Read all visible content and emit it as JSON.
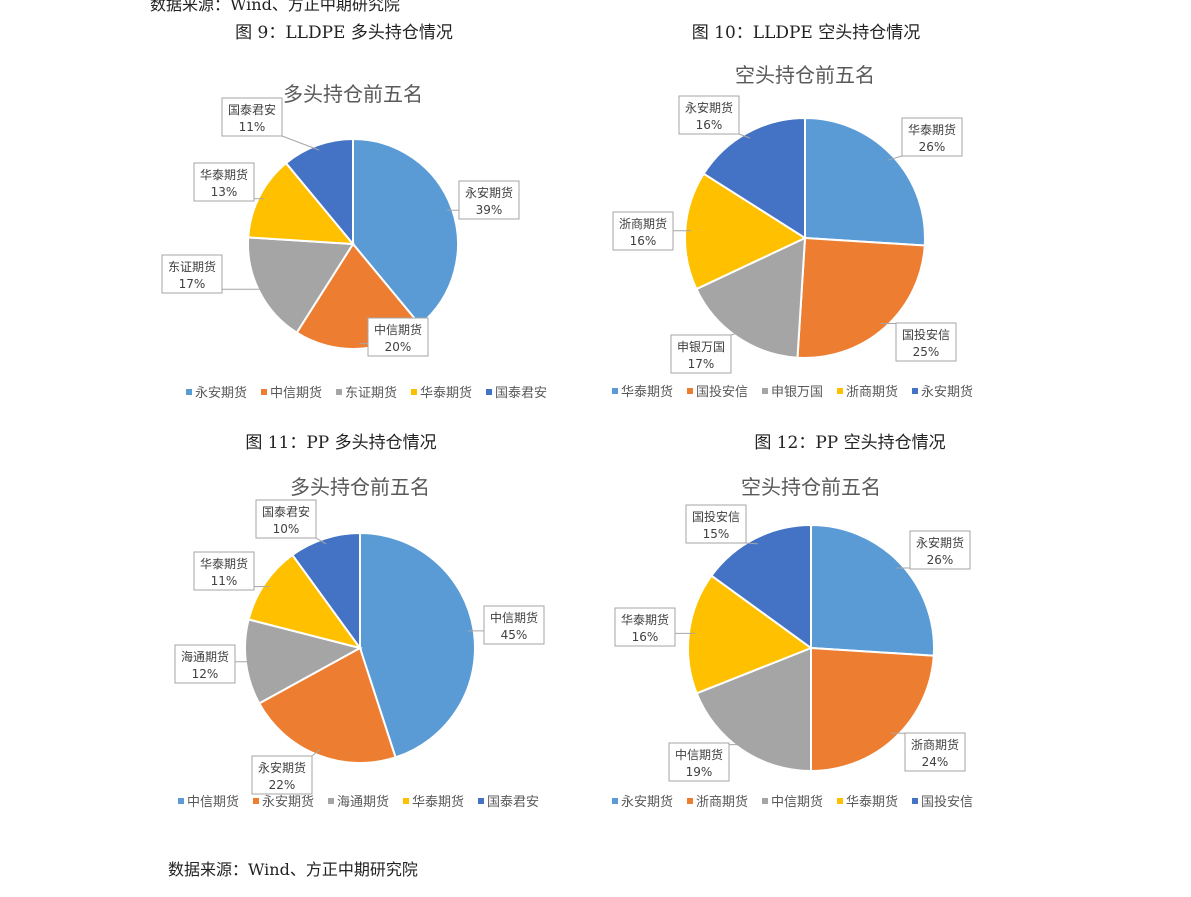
{
  "header_note": "数据来源：Wind、方正中期研究院",
  "captions": [
    "图 9：LLDPE 多头持仓情况",
    "图 10：LLDPE 空头持仓情况",
    "图 11：PP 多头持仓情况",
    "图 12：PP 空头持仓情况"
  ],
  "source_note": "数据来源：Wind、方正中期研究院",
  "colors": [
    "#5B9BD5",
    "#ED7D31",
    "#A5A5A5",
    "#FFC000",
    "#4472C4"
  ],
  "chart_data": [
    {
      "type": "pie",
      "title": "多头持仓前五名",
      "categories": [
        "永安期货",
        "中信期货",
        "东证期货",
        "华泰期货",
        "国泰君安"
      ],
      "values": [
        39,
        20,
        17,
        13,
        11
      ],
      "data_labels": [
        "39%",
        "20%",
        "17%",
        "13%",
        "11%"
      ],
      "legend_position": "bottom"
    },
    {
      "type": "pie",
      "title": "空头持仓前五名",
      "categories": [
        "华泰期货",
        "国投安信",
        "申银万国",
        "浙商期货",
        "永安期货"
      ],
      "values": [
        26,
        25,
        17,
        16,
        16
      ],
      "data_labels": [
        "26%",
        "25%",
        "17%",
        "16%",
        "16%"
      ],
      "legend_position": "bottom"
    },
    {
      "type": "pie",
      "title": "多头持仓前五名",
      "categories": [
        "中信期货",
        "永安期货",
        "海通期货",
        "华泰期货",
        "国泰君安"
      ],
      "values": [
        45,
        22,
        12,
        11,
        10
      ],
      "data_labels": [
        "45%",
        "22%",
        "12%",
        "11%",
        "10%"
      ],
      "legend_position": "bottom"
    },
    {
      "type": "pie",
      "title": "空头持仓前五名",
      "categories": [
        "永安期货",
        "浙商期货",
        "中信期货",
        "华泰期货",
        "国投安信"
      ],
      "values": [
        26,
        24,
        19,
        16,
        15
      ],
      "data_labels": [
        "26%",
        "24%",
        "19%",
        "16%",
        "15%"
      ],
      "legend_position": "bottom"
    }
  ]
}
